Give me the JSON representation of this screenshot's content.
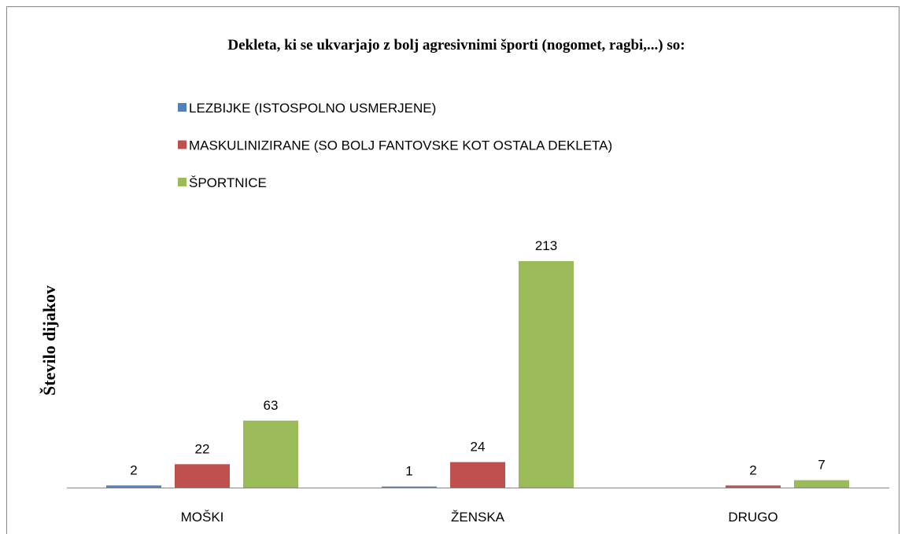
{
  "chart_data": {
    "type": "bar",
    "title": "Dekleta, ki se ukvarjajo z bolj agresivnimi športi (nogomet, ragbi,...) so:",
    "y_label": "Število dijakov",
    "categories": [
      "MOŠKI",
      "ŽENSKA",
      "DRUGO"
    ],
    "series": [
      {
        "name": "LEZBIJKE (ISTOSPOLNO USMERJENE)",
        "color": "#4f81bd",
        "values": [
          2,
          1,
          null
        ]
      },
      {
        "name": "MASKULINIZIRANE (SO BOLJ FANTOVSKE KOT OSTALA DEKLETA)",
        "color": "#c0504d",
        "values": [
          22,
          24,
          2
        ]
      },
      {
        "name": "ŠPORTNICE",
        "color": "#9bbb59",
        "values": [
          63,
          213,
          7
        ]
      }
    ],
    "legend": "top"
  }
}
